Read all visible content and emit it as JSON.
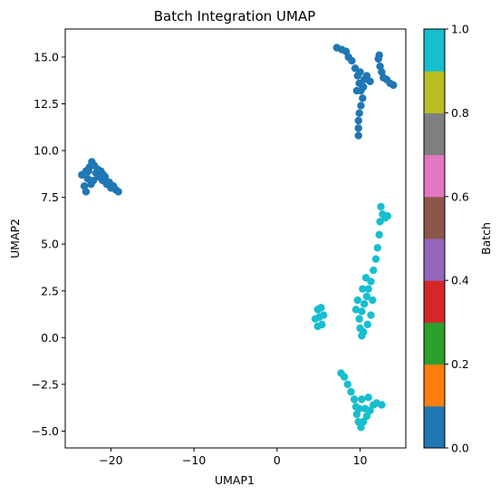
{
  "chart_data": {
    "type": "scatter",
    "title": "Batch Integration UMAP",
    "xlabel": "UMAP1",
    "ylabel": "UMAP2",
    "xlim": [
      -25.5,
      15.5
    ],
    "ylim": [
      -5.9,
      16.5
    ],
    "xticks": [
      -20,
      -10,
      0,
      10
    ],
    "xtick_labels": [
      "−20",
      "−10",
      "0",
      "10"
    ],
    "yticks": [
      -5.0,
      -2.5,
      0.0,
      2.5,
      5.0,
      7.5,
      10.0,
      12.5,
      15.0
    ],
    "ytick_labels": [
      "−5.0",
      "−2.5",
      "0.0",
      "2.5",
      "5.0",
      "7.5",
      "10.0",
      "12.5",
      "15.0"
    ],
    "grid": false,
    "colorbar": {
      "label": "Batch",
      "range": [
        0.0,
        1.0
      ],
      "ticks": [
        0.0,
        0.2,
        0.4,
        0.6,
        0.8,
        1.0
      ],
      "tick_labels": [
        "0.0",
        "0.2",
        "0.4",
        "0.6",
        "0.8",
        "1.0"
      ],
      "colors": [
        "#1f77b4",
        "#ff7f0e",
        "#2ca02c",
        "#d62728",
        "#9467bd",
        "#8c564b",
        "#e377c2",
        "#7f7f7f",
        "#bcbd22",
        "#17becf"
      ]
    },
    "series": [
      {
        "batch": 0,
        "color": "#1f77b4",
        "points": [
          [
            -23.5,
            8.7
          ],
          [
            -23.0,
            8.9
          ],
          [
            -22.8,
            8.5
          ],
          [
            -22.6,
            9.1
          ],
          [
            -22.4,
            8.2
          ],
          [
            -22.3,
            9.4
          ],
          [
            -22.0,
            9.2
          ],
          [
            -21.8,
            8.8
          ],
          [
            -21.5,
            8.6
          ],
          [
            -21.2,
            8.9
          ],
          [
            -21.0,
            8.4
          ],
          [
            -20.7,
            8.6
          ],
          [
            -20.5,
            8.2
          ],
          [
            -20.2,
            8.3
          ],
          [
            -20.0,
            8.0
          ],
          [
            -19.7,
            8.1
          ],
          [
            -19.4,
            7.9
          ],
          [
            -19.1,
            7.8
          ],
          [
            -23.2,
            8.1
          ],
          [
            -23.0,
            7.8
          ],
          [
            -22.7,
            8.9
          ],
          [
            -21.6,
            9.0
          ],
          [
            -22.1,
            8.4
          ],
          [
            -20.9,
            8.7
          ],
          [
            7.2,
            15.5
          ],
          [
            7.8,
            15.4
          ],
          [
            8.3,
            15.3
          ],
          [
            8.6,
            15.0
          ],
          [
            9.0,
            14.8
          ],
          [
            9.4,
            14.4
          ],
          [
            9.7,
            14.0
          ],
          [
            9.9,
            13.6
          ],
          [
            10.1,
            13.2
          ],
          [
            10.3,
            12.8
          ],
          [
            10.1,
            12.4
          ],
          [
            9.9,
            12.0
          ],
          [
            9.8,
            11.6
          ],
          [
            9.8,
            11.2
          ],
          [
            9.8,
            10.8
          ],
          [
            10.5,
            13.8
          ],
          [
            10.8,
            14.0
          ],
          [
            11.2,
            13.7
          ],
          [
            12.2,
            14.9
          ],
          [
            12.4,
            14.5
          ],
          [
            12.6,
            14.2
          ],
          [
            12.8,
            13.9
          ],
          [
            13.2,
            13.8
          ],
          [
            13.6,
            13.6
          ],
          [
            14.0,
            13.5
          ],
          [
            10.0,
            14.2
          ],
          [
            9.6,
            13.2
          ],
          [
            10.4,
            13.4
          ],
          [
            12.3,
            15.1
          ]
        ]
      },
      {
        "batch": 1,
        "color": "#17becf",
        "points": [
          [
            12.5,
            7.0
          ],
          [
            12.7,
            6.6
          ],
          [
            12.4,
            6.2
          ],
          [
            13.0,
            6.4
          ],
          [
            13.3,
            6.5
          ],
          [
            12.3,
            5.5
          ],
          [
            12.1,
            4.8
          ],
          [
            11.9,
            4.2
          ],
          [
            11.6,
            3.6
          ],
          [
            11.3,
            3.0
          ],
          [
            11.0,
            2.6
          ],
          [
            10.8,
            2.2
          ],
          [
            10.5,
            1.8
          ],
          [
            10.2,
            1.4
          ],
          [
            9.9,
            1.0
          ],
          [
            10.0,
            0.5
          ],
          [
            10.2,
            0.1
          ],
          [
            10.4,
            0.3
          ],
          [
            10.9,
            0.7
          ],
          [
            11.3,
            1.2
          ],
          [
            11.5,
            2.0
          ],
          [
            10.7,
            3.2
          ],
          [
            10.3,
            2.6
          ],
          [
            9.7,
            2.0
          ],
          [
            9.5,
            1.5
          ],
          [
            4.6,
            1.0
          ],
          [
            4.9,
            1.5
          ],
          [
            5.3,
            1.6
          ],
          [
            5.6,
            1.2
          ],
          [
            5.4,
            0.7
          ],
          [
            4.9,
            0.6
          ],
          [
            5.1,
            1.1
          ],
          [
            7.7,
            -1.9
          ],
          [
            8.1,
            -2.1
          ],
          [
            8.5,
            -2.5
          ],
          [
            8.9,
            -2.9
          ],
          [
            9.3,
            -3.3
          ],
          [
            9.5,
            -3.7
          ],
          [
            9.6,
            -4.1
          ],
          [
            9.8,
            -4.5
          ],
          [
            10.1,
            -4.8
          ],
          [
            10.4,
            -4.5
          ],
          [
            10.8,
            -4.2
          ],
          [
            11.2,
            -3.9
          ],
          [
            11.6,
            -3.6
          ],
          [
            12.0,
            -3.5
          ],
          [
            12.6,
            -3.6
          ],
          [
            10.2,
            -3.3
          ],
          [
            9.9,
            -3.8
          ],
          [
            10.6,
            -3.8
          ],
          [
            11.0,
            -3.2
          ]
        ]
      }
    ]
  }
}
